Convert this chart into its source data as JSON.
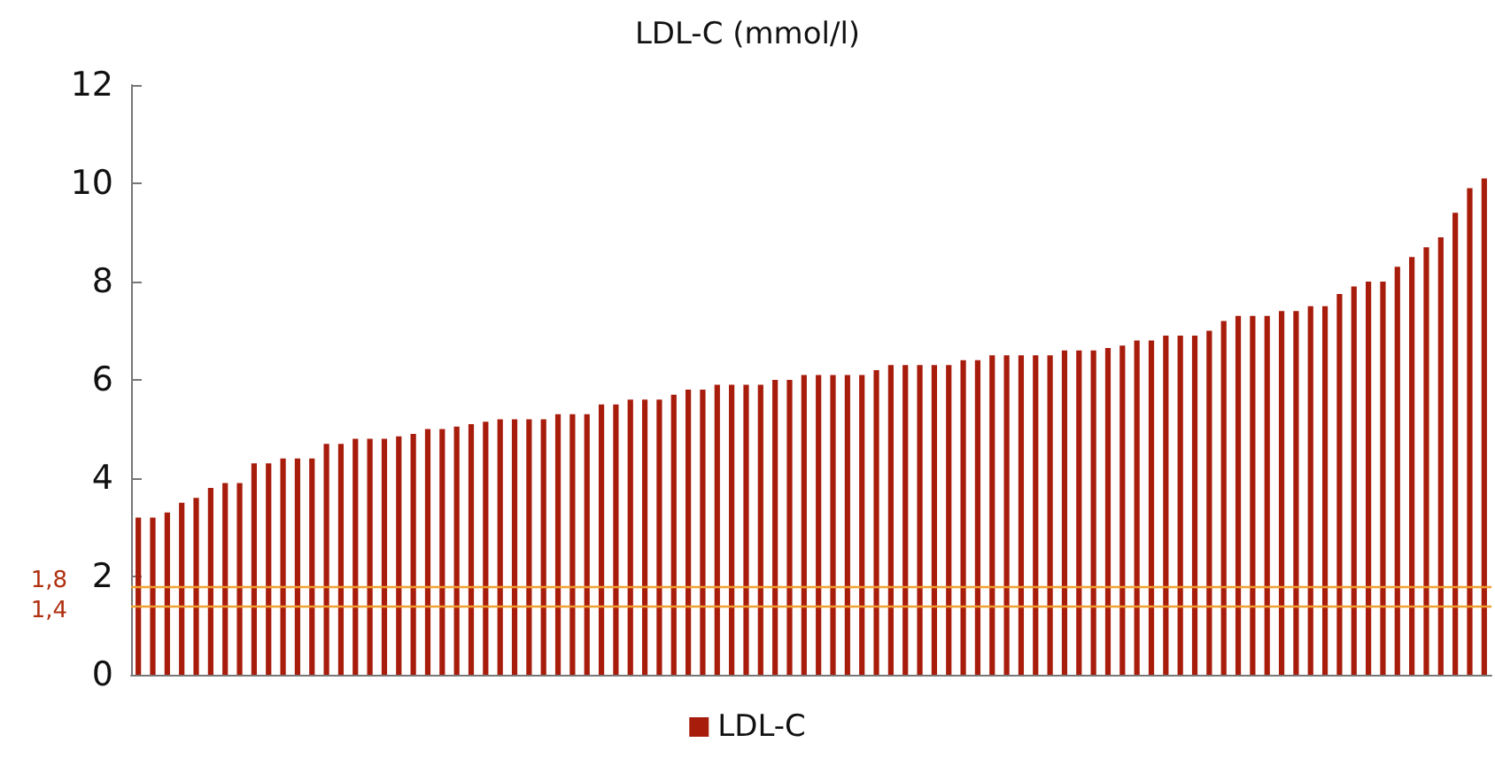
{
  "chart_data": {
    "type": "bar",
    "title": "LDL-C (mmol/l)",
    "categories": [
      null,
      null,
      null,
      null,
      null,
      null,
      null,
      null,
      null,
      null,
      null,
      null,
      null,
      null,
      null,
      null,
      null,
      null,
      null,
      null,
      null,
      null,
      null,
      null,
      null,
      null,
      null,
      null,
      null,
      null,
      null,
      null,
      null,
      null,
      null,
      null,
      null,
      null,
      null,
      null,
      null,
      null,
      null,
      null,
      null,
      null,
      null,
      null,
      null,
      null,
      null,
      null,
      null,
      null,
      null,
      null,
      null,
      null,
      null,
      null,
      null,
      null,
      null,
      null,
      null,
      null,
      null,
      null,
      null,
      null,
      null,
      null,
      null,
      null,
      null,
      null,
      null,
      null,
      null,
      null,
      null,
      null,
      null,
      null,
      null,
      null,
      null,
      null,
      null,
      null,
      null,
      null,
      null,
      null
    ],
    "series": [
      {
        "name": "LDL-C",
        "color": "#a81c0c",
        "values": [
          3.2,
          3.2,
          3.3,
          3.5,
          3.6,
          3.8,
          3.9,
          3.9,
          4.3,
          4.3,
          4.4,
          4.4,
          4.4,
          4.7,
          4.7,
          4.8,
          4.8,
          4.8,
          4.85,
          4.9,
          5.0,
          5.0,
          5.05,
          5.1,
          5.15,
          5.2,
          5.2,
          5.2,
          5.2,
          5.3,
          5.3,
          5.3,
          5.5,
          5.5,
          5.6,
          5.6,
          5.6,
          5.7,
          5.8,
          5.8,
          5.9,
          5.9,
          5.9,
          5.9,
          6.0,
          6.0,
          6.1,
          6.1,
          6.1,
          6.1,
          6.1,
          6.2,
          6.3,
          6.3,
          6.3,
          6.3,
          6.3,
          6.4,
          6.4,
          6.5,
          6.5,
          6.5,
          6.5,
          6.5,
          6.6,
          6.6,
          6.6,
          6.65,
          6.7,
          6.8,
          6.8,
          6.9,
          6.9,
          6.9,
          7.0,
          7.2,
          7.3,
          7.3,
          7.3,
          7.4,
          7.4,
          7.5,
          7.5,
          7.75,
          7.9,
          8.0,
          8.0,
          8.3,
          8.5,
          8.7,
          8.9,
          9.4,
          9.9,
          10.1
        ]
      }
    ],
    "ylim": [
      0,
      12
    ],
    "yticks": [
      0,
      2,
      4,
      6,
      8,
      10,
      12
    ],
    "ref_lines": [
      {
        "axis": "y",
        "value": 1.8,
        "label": "1,8",
        "color": "#f0a030"
      },
      {
        "axis": "y",
        "value": 1.4,
        "label": "1,4",
        "color": "#f0a030"
      }
    ],
    "legend": "bottom",
    "grid": false
  }
}
